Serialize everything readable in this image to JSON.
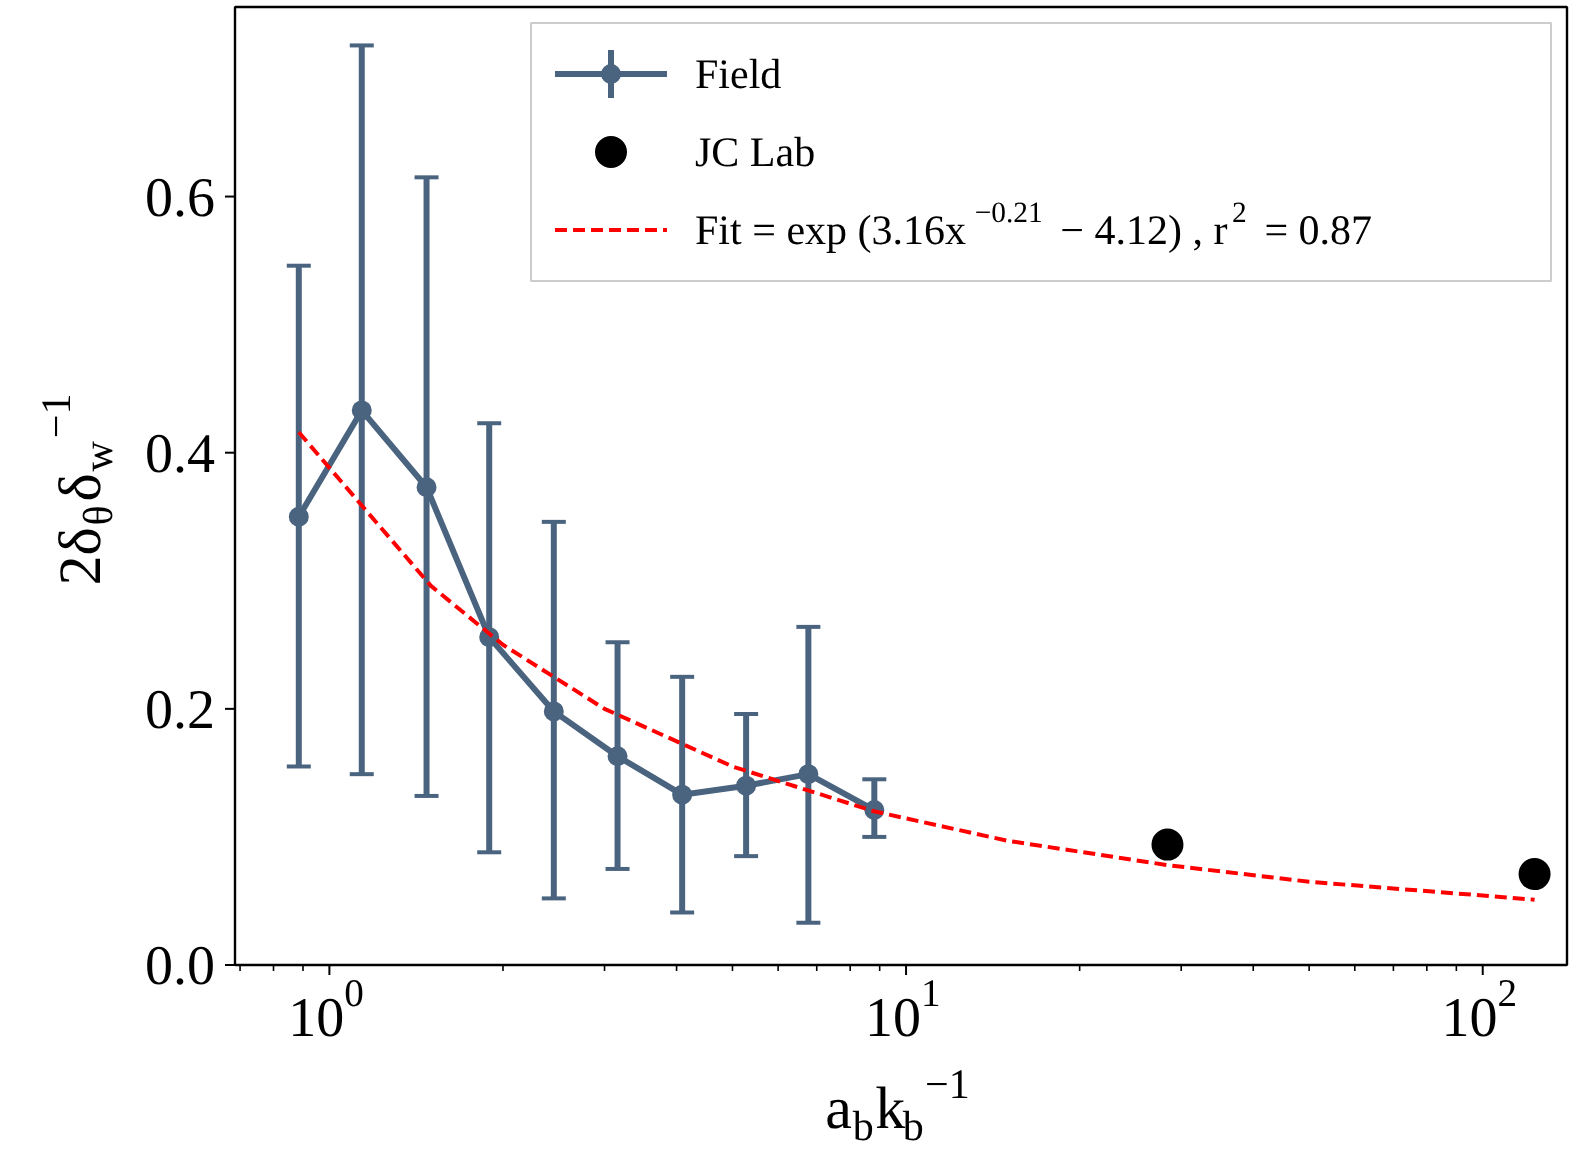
{
  "chart_data": {
    "type": "line",
    "xlabel": "a$_{b}$k$_{b}$$^{−1}$",
    "ylabel": "2δ$_{θ}$δ$_{w}$$^{−1}$",
    "log": "x",
    "xlim": [
      0.686,
      140
    ],
    "xticks": [
      {
        "value": 1,
        "label": "10$^{0}$"
      },
      {
        "value": 10,
        "label": "10$^{1}$"
      },
      {
        "value": 100,
        "label": "10$^{2}$"
      }
    ],
    "ylim": [
      0,
      0.748
    ],
    "yticks": [
      {
        "value": 0,
        "label": "0.0"
      },
      {
        "value": 0.2,
        "label": "0.2"
      },
      {
        "value": 0.4,
        "label": "0.4"
      },
      {
        "value": 0.6,
        "label": "0.6"
      }
    ],
    "grid": false,
    "legend": "top right",
    "series": [
      {
        "name": "Field",
        "type": "line",
        "marker": "circle",
        "color": "#4a6480",
        "x": [
          0.885,
          1.138,
          1.474,
          1.893,
          2.45,
          3.16,
          4.09,
          5.28,
          6.77,
          8.81
        ],
        "values": [
          0.35,
          0.433,
          0.373,
          0.256,
          0.198,
          0.163,
          0.133,
          0.14,
          0.149,
          0.121
        ],
        "errors": [
          [
            0.155,
            0.546
          ],
          [
            0.149,
            0.718
          ],
          [
            0.132,
            0.615
          ],
          [
            0.088,
            0.423
          ],
          [
            0.052,
            0.346
          ],
          [
            0.075,
            0.252
          ],
          [
            0.041,
            0.225
          ],
          [
            0.085,
            0.196
          ],
          [
            0.033,
            0.264
          ],
          [
            0.1,
            0.145
          ]
        ]
      },
      {
        "name": "JC Lab",
        "type": "scatter",
        "marker": "circle",
        "color": "#000000",
        "x": [
          28.4,
          123
        ],
        "values": [
          0.094,
          0.071
        ]
      },
      {
        "name": "Fit = exp (3.16x$^{−0.21}$ − 4.12) , r$^{2}$ = 0.87",
        "type": "line",
        "marker": "none",
        "line_style": "dashed",
        "color": "#ff0000",
        "x": [
          0.885,
          1.5,
          2,
          3,
          5,
          8.8,
          15,
          28.4,
          50,
          123
        ],
        "values": [
          0.416,
          0.296,
          0.25,
          0.2,
          0.155,
          0.12,
          0.097,
          0.078,
          0.065,
          0.051
        ]
      }
    ]
  }
}
